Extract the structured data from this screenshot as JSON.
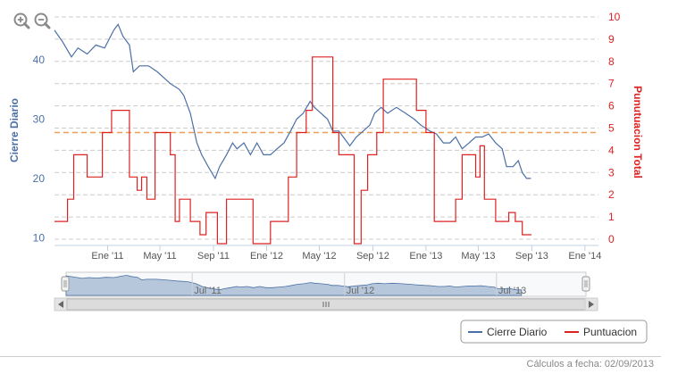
{
  "colors": {
    "cierre": "#4a6fa5",
    "puntuacion": "#dd2222",
    "reference": "#f0a050",
    "grid": "#cccccc",
    "navigator_fill": "#b7c7db"
  },
  "icons": {
    "zoom_in": "zoom-in-icon",
    "zoom_out": "zoom-out-icon"
  },
  "footer": {
    "text": "Cálculos a fecha: 02/09/2013"
  },
  "chart_data": {
    "type": "line",
    "xlabel": "",
    "x_ticks": [
      "Ene '11",
      "May '11",
      "Sep '11",
      "Ene '12",
      "May '12",
      "Sep '12",
      "Ene '13",
      "May '13",
      "Sep '13",
      "Ene '14"
    ],
    "x_range": [
      "2010-09-01",
      "2014-02-01"
    ],
    "y_left": {
      "label": "Cierre Diario",
      "ticks": [
        10,
        20,
        30,
        40
      ],
      "range": [
        9,
        48
      ]
    },
    "y_right": {
      "label": "Punutuacion Total",
      "ticks": [
        0,
        1,
        2,
        3,
        4,
        5,
        6,
        7,
        8,
        9,
        10
      ],
      "range": [
        -0.2,
        10.2
      ]
    },
    "reference_line": {
      "axis": "right",
      "value": 4.8
    },
    "legend": {
      "position": "bottom-right",
      "items": [
        "Cierre Diario",
        "Puntuacion"
      ]
    },
    "navigator_labels": [
      "Jul '11",
      "Jul '12",
      "Jul '13"
    ],
    "series": [
      {
        "name": "Cierre Diario",
        "axis": "left",
        "points": [
          [
            "2010-09-01",
            45
          ],
          [
            "2010-09-20",
            43
          ],
          [
            "2010-10-10",
            40.5
          ],
          [
            "2010-10-25",
            42
          ],
          [
            "2010-11-15",
            41
          ],
          [
            "2010-12-05",
            42.5
          ],
          [
            "2010-12-25",
            42
          ],
          [
            "2011-01-15",
            45
          ],
          [
            "2011-01-25",
            46
          ],
          [
            "2011-02-05",
            44
          ],
          [
            "2011-02-20",
            42.5
          ],
          [
            "2011-03-01",
            38
          ],
          [
            "2011-03-15",
            39
          ],
          [
            "2011-04-05",
            39
          ],
          [
            "2011-04-25",
            38
          ],
          [
            "2011-05-10",
            37
          ],
          [
            "2011-05-25",
            36
          ],
          [
            "2011-06-15",
            35
          ],
          [
            "2011-06-25",
            34
          ],
          [
            "2011-07-10",
            31
          ],
          [
            "2011-07-25",
            26
          ],
          [
            "2011-08-05",
            24
          ],
          [
            "2011-08-20",
            22
          ],
          [
            "2011-09-05",
            20
          ],
          [
            "2011-09-15",
            22
          ],
          [
            "2011-10-01",
            24
          ],
          [
            "2011-10-15",
            26
          ],
          [
            "2011-10-25",
            25
          ],
          [
            "2011-11-10",
            26
          ],
          [
            "2011-11-25",
            24
          ],
          [
            "2011-12-10",
            26
          ],
          [
            "2011-12-25",
            24
          ],
          [
            "2012-01-10",
            24
          ],
          [
            "2012-01-25",
            25
          ],
          [
            "2012-02-10",
            26
          ],
          [
            "2012-02-25",
            28
          ],
          [
            "2012-03-10",
            30
          ],
          [
            "2012-03-25",
            31
          ],
          [
            "2012-04-10",
            33
          ],
          [
            "2012-04-20",
            32
          ],
          [
            "2012-05-05",
            31
          ],
          [
            "2012-05-20",
            30
          ],
          [
            "2012-06-01",
            28
          ],
          [
            "2012-06-15",
            28
          ],
          [
            "2012-06-25",
            27
          ],
          [
            "2012-07-10",
            25.5
          ],
          [
            "2012-07-25",
            27
          ],
          [
            "2012-08-10",
            28
          ],
          [
            "2012-08-25",
            29
          ],
          [
            "2012-09-05",
            31
          ],
          [
            "2012-09-20",
            32
          ],
          [
            "2012-10-05",
            31
          ],
          [
            "2012-10-25",
            32
          ],
          [
            "2012-11-15",
            31
          ],
          [
            "2012-12-05",
            30
          ],
          [
            "2012-12-20",
            29
          ],
          [
            "2013-01-10",
            28
          ],
          [
            "2013-01-25",
            27.5
          ],
          [
            "2013-02-10",
            26
          ],
          [
            "2013-02-25",
            26
          ],
          [
            "2013-03-10",
            27
          ],
          [
            "2013-03-25",
            25
          ],
          [
            "2013-04-10",
            26
          ],
          [
            "2013-04-25",
            27
          ],
          [
            "2013-05-10",
            27
          ],
          [
            "2013-05-25",
            27.5
          ],
          [
            "2013-06-10",
            26
          ],
          [
            "2013-06-25",
            25
          ],
          [
            "2013-07-05",
            22
          ],
          [
            "2013-07-20",
            22
          ],
          [
            "2013-08-01",
            23
          ],
          [
            "2013-08-10",
            21
          ],
          [
            "2013-08-20",
            20
          ],
          [
            "2013-08-30",
            20
          ]
        ]
      },
      {
        "name": "Puntuacion",
        "axis": "right",
        "points": [
          [
            "2010-09-01",
            0.8
          ],
          [
            "2010-10-01",
            0.8
          ],
          [
            "2010-10-01",
            1.8
          ],
          [
            "2010-10-15",
            1.8
          ],
          [
            "2010-10-15",
            3.8
          ],
          [
            "2010-11-15",
            3.8
          ],
          [
            "2010-11-15",
            2.8
          ],
          [
            "2010-12-20",
            2.8
          ],
          [
            "2010-12-20",
            4.8
          ],
          [
            "2011-01-10",
            4.8
          ],
          [
            "2011-01-10",
            5.8
          ],
          [
            "2011-02-20",
            5.8
          ],
          [
            "2011-02-20",
            2.8
          ],
          [
            "2011-03-10",
            2.8
          ],
          [
            "2011-03-10",
            2.2
          ],
          [
            "2011-03-20",
            2.2
          ],
          [
            "2011-03-20",
            2.8
          ],
          [
            "2011-04-01",
            2.8
          ],
          [
            "2011-04-01",
            1.8
          ],
          [
            "2011-04-20",
            1.8
          ],
          [
            "2011-04-20",
            4.8
          ],
          [
            "2011-05-25",
            4.8
          ],
          [
            "2011-05-25",
            3.8
          ],
          [
            "2011-06-05",
            3.8
          ],
          [
            "2011-06-05",
            0.8
          ],
          [
            "2011-06-15",
            0.8
          ],
          [
            "2011-06-15",
            1.8
          ],
          [
            "2011-07-10",
            1.8
          ],
          [
            "2011-07-10",
            0.8
          ],
          [
            "2011-08-01",
            0.8
          ],
          [
            "2011-08-01",
            0.2
          ],
          [
            "2011-08-15",
            0.2
          ],
          [
            "2011-08-15",
            1.2
          ],
          [
            "2011-09-10",
            1.2
          ],
          [
            "2011-09-10",
            -0.2
          ],
          [
            "2011-10-01",
            -0.2
          ],
          [
            "2011-10-01",
            1.8
          ],
          [
            "2011-12-01",
            1.8
          ],
          [
            "2011-12-01",
            -0.2
          ],
          [
            "2012-01-10",
            -0.2
          ],
          [
            "2012-01-10",
            0.8
          ],
          [
            "2012-02-20",
            0.8
          ],
          [
            "2012-02-20",
            2.8
          ],
          [
            "2012-03-10",
            2.8
          ],
          [
            "2012-03-10",
            4.8
          ],
          [
            "2012-04-01",
            4.8
          ],
          [
            "2012-04-01",
            5.8
          ],
          [
            "2012-04-15",
            5.8
          ],
          [
            "2012-04-15",
            8.2
          ],
          [
            "2012-06-01",
            8.2
          ],
          [
            "2012-06-01",
            4.8
          ],
          [
            "2012-06-15",
            4.8
          ],
          [
            "2012-06-15",
            3.8
          ],
          [
            "2012-07-20",
            3.8
          ],
          [
            "2012-07-20",
            -0.2
          ],
          [
            "2012-08-05",
            -0.2
          ],
          [
            "2012-08-05",
            2.2
          ],
          [
            "2012-08-20",
            2.2
          ],
          [
            "2012-08-20",
            3.8
          ],
          [
            "2012-09-10",
            3.8
          ],
          [
            "2012-09-10",
            4.8
          ],
          [
            "2012-09-25",
            4.8
          ],
          [
            "2012-09-25",
            7.2
          ],
          [
            "2012-12-10",
            7.2
          ],
          [
            "2012-12-10",
            5.8
          ],
          [
            "2013-01-01",
            5.8
          ],
          [
            "2013-01-01",
            4.8
          ],
          [
            "2013-01-20",
            4.8
          ],
          [
            "2013-01-20",
            0.8
          ],
          [
            "2013-03-10",
            0.8
          ],
          [
            "2013-03-10",
            1.8
          ],
          [
            "2013-03-25",
            1.8
          ],
          [
            "2013-03-25",
            3.8
          ],
          [
            "2013-04-25",
            3.8
          ],
          [
            "2013-04-25",
            2.8
          ],
          [
            "2013-05-05",
            2.8
          ],
          [
            "2013-05-05",
            4.2
          ],
          [
            "2013-05-15",
            4.2
          ],
          [
            "2013-05-15",
            1.8
          ],
          [
            "2013-06-10",
            1.8
          ],
          [
            "2013-06-10",
            0.8
          ],
          [
            "2013-07-10",
            0.8
          ],
          [
            "2013-07-10",
            1.2
          ],
          [
            "2013-07-25",
            1.2
          ],
          [
            "2013-07-25",
            0.8
          ],
          [
            "2013-08-10",
            0.8
          ],
          [
            "2013-08-10",
            0.2
          ],
          [
            "2013-08-31",
            0.2
          ]
        ]
      }
    ]
  }
}
